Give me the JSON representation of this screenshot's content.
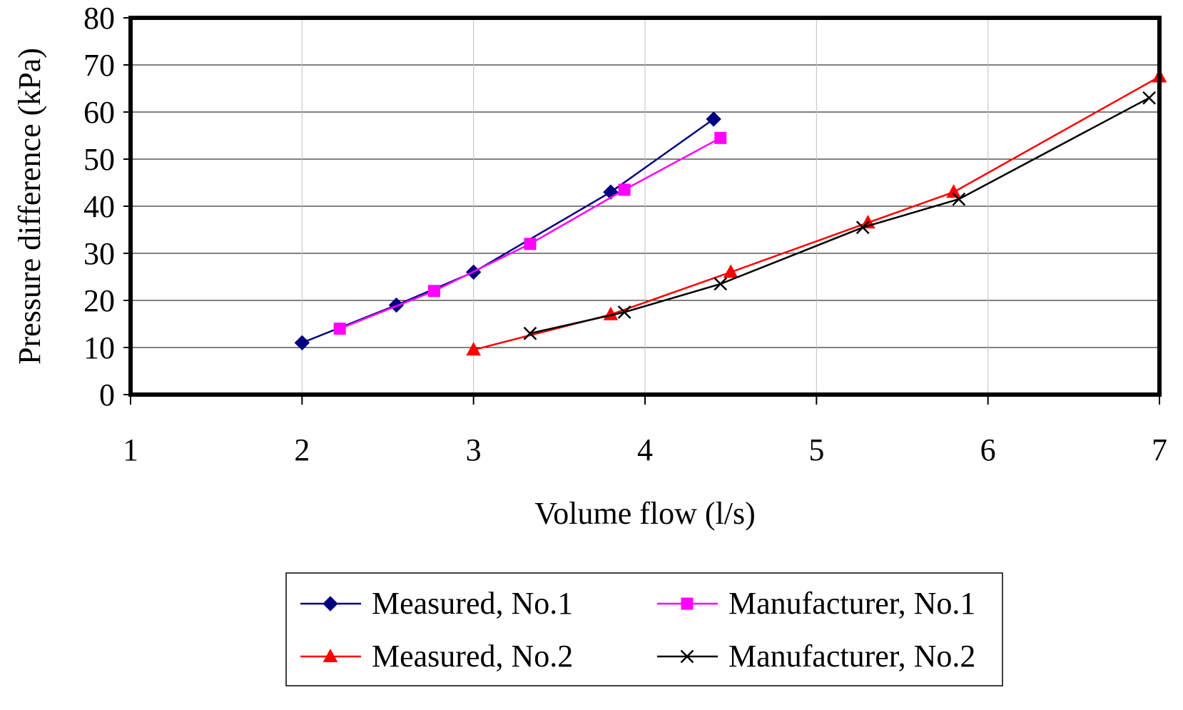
{
  "chart_data": {
    "type": "line",
    "title": "",
    "xlabel": "Volume flow (l/s)",
    "ylabel": "Pressure difference (kPa)",
    "xlim": [
      1,
      7
    ],
    "ylim": [
      0,
      80
    ],
    "x_ticks": [
      "1",
      "2",
      "3",
      "4",
      "5",
      "6",
      "7"
    ],
    "y_ticks": [
      "0",
      "10",
      "20",
      "30",
      "40",
      "50",
      "60",
      "70",
      "80"
    ],
    "grid": true,
    "legend_position": "bottom",
    "series": [
      {
        "name": "Measured, No.1",
        "color": "#000080",
        "marker": "diamond",
        "x": [
          2.0,
          2.55,
          3.0,
          3.8,
          4.4
        ],
        "y": [
          11,
          19,
          26,
          43,
          58.5
        ]
      },
      {
        "name": "Manufacturer, No.1",
        "color": "#FF00FF",
        "marker": "square",
        "x": [
          2.22,
          2.77,
          3.33,
          3.88,
          4.44
        ],
        "y": [
          14,
          22,
          32,
          43.5,
          54.5
        ]
      },
      {
        "name": "Measured, No.2",
        "color": "#FF0000",
        "marker": "triangle",
        "x": [
          3.0,
          3.8,
          4.5,
          5.3,
          5.8,
          7.0
        ],
        "y": [
          9.5,
          17,
          26,
          36.5,
          43,
          67.5
        ]
      },
      {
        "name": "Manufacturer, No.2",
        "color": "#000000",
        "marker": "x",
        "x": [
          3.33,
          3.88,
          4.44,
          5.27,
          5.83,
          6.94
        ],
        "y": [
          13,
          17.5,
          23.5,
          35.5,
          41.5,
          63
        ]
      }
    ]
  }
}
